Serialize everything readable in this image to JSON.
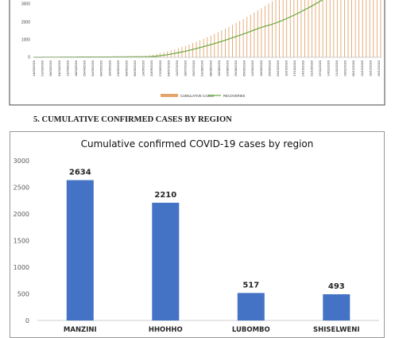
{
  "top_chart": {
    "yticks": [
      "3000",
      "2000",
      "1000",
      "0"
    ],
    "legend": [
      "CUMULATIVE CASES",
      "RECOVERIES"
    ],
    "dates": [
      "14/03/2020",
      "21/03/2020",
      "28/03/2020",
      "04/04/2020",
      "11/04/2020",
      "18/04/2020",
      "25/04/2020",
      "02/05/2020",
      "09/05/2020",
      "16/05/2020",
      "23/05/2020",
      "30/05/2020",
      "06/06/2020",
      "13/06/2020",
      "20/06/2020",
      "27/06/2020",
      "04/07/2020",
      "11/07/2020",
      "18/07/2020",
      "25/07/2020",
      "01/08/2020",
      "08/08/2020",
      "15/08/2020",
      "22/08/2020",
      "29/08/2020",
      "05/09/2020",
      "12/09/2020",
      "19/09/2020",
      "26/09/2020",
      "03/10/2020",
      "10/10/2020",
      "17/10/2020",
      "24/10/2020",
      "31/10/2020",
      "07/11/2020",
      "14/11/2020",
      "21/11/2020",
      "28/11/2020",
      "05/12/2020",
      "12/12/2020",
      "19/12/2020",
      "26/12/2020"
    ],
    "colors": {
      "cases": "#e3a56b",
      "recoveries": "#70ad47"
    }
  },
  "section_heading": "5.   CUMULATIVE CONFIRMED CASES BY REGION",
  "chart_data": {
    "type": "bar",
    "title": "Cumulative confirmed COVID-19 cases by region",
    "categories": [
      "MANZINI",
      "HHOHHO",
      "LUBOMBO",
      "SHISELWENI"
    ],
    "values": [
      2634,
      2210,
      517,
      493
    ],
    "ylim": [
      0,
      3000
    ],
    "yticks": [
      0,
      500,
      1000,
      1500,
      2000,
      2500,
      3000
    ],
    "grid": false,
    "bar_color": "#4472c4"
  }
}
